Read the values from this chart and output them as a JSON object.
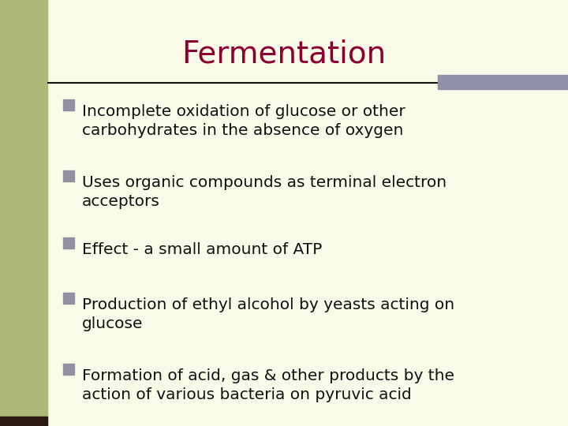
{
  "title": "Fermentation",
  "title_color": "#8B0030",
  "title_fontsize": 28,
  "background_color": "#FAFAE8",
  "left_bar_color": "#B0B878",
  "right_bar_color": "#9090A8",
  "bullet_color": "#9090A0",
  "text_color": "#111111",
  "bullet_points": [
    "Incomplete oxidation of glucose or other\ncarbohydrates in the absence of oxygen",
    "Uses organic compounds as terminal electron\nacceptors",
    "Effect - a small amount of ATP",
    "Production of ethyl alcohol by yeasts acting on\nglucose",
    "Formation of acid, gas & other products by the\naction of various bacteria on pyruvic acid"
  ],
  "text_fontsize": 14.5,
  "figsize": [
    7.2,
    5.4
  ],
  "dpi": 100
}
